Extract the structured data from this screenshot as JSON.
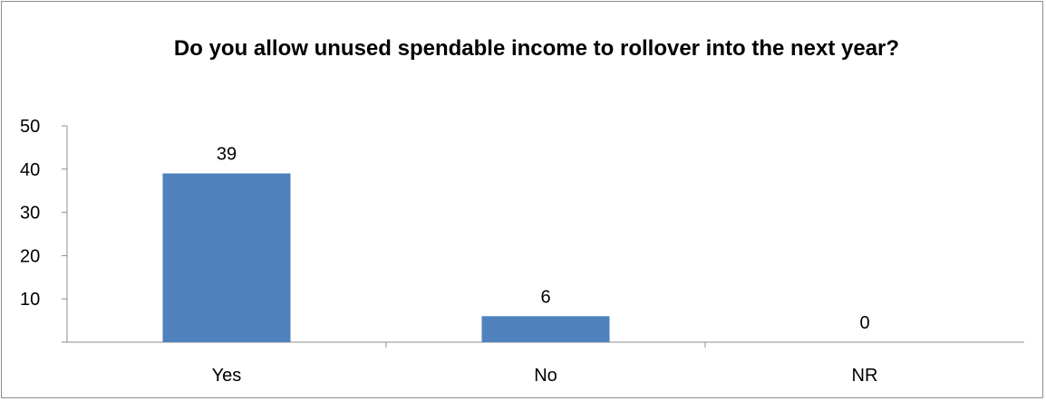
{
  "chart_data": {
    "type": "bar",
    "title": "Do you allow unused spendable income to rollover into the next year?",
    "categories": [
      "Yes",
      "No",
      "NR"
    ],
    "values": [
      39,
      6,
      0
    ],
    "data_labels": [
      "39",
      "6",
      "0"
    ],
    "y_ticks": [
      10,
      20,
      30,
      40,
      50
    ],
    "y_tick_labels": [
      "10",
      "20",
      "30",
      "40",
      "50"
    ],
    "ylim": [
      0,
      50
    ],
    "xlabel": "",
    "ylabel": "",
    "grid": false,
    "legend": "none",
    "bar_color": "#4f81bd",
    "axis_color": "#8c8c8c"
  }
}
